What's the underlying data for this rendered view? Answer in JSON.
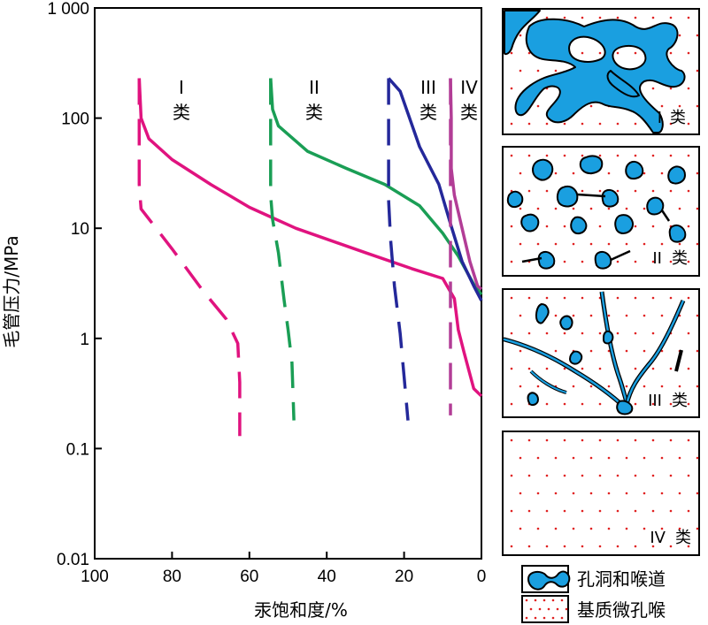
{
  "chart_data": {
    "type": "line",
    "xlabel": "汞饱和度/%",
    "ylabel": "毛管压力/MPa",
    "x_scale": "linear",
    "x_reversed": true,
    "xlim": [
      100,
      0
    ],
    "y_scale": "log",
    "ylim": [
      0.01,
      1000
    ],
    "x_ticks": [
      "100",
      "80",
      "60",
      "40",
      "20",
      "0"
    ],
    "y_ticks": [
      "1 000",
      "100",
      "10",
      "1",
      "0.1",
      "0.01"
    ],
    "series": [
      {
        "name": "I 类",
        "class_numeral": "I",
        "class_word": "类",
        "color": "#e0137f",
        "injection": [
          [
            88.5,
            230
          ],
          [
            88,
            100
          ],
          [
            86,
            65
          ],
          [
            80,
            42
          ],
          [
            70,
            25
          ],
          [
            60,
            15.5
          ],
          [
            48,
            10
          ],
          [
            30,
            6
          ],
          [
            18,
            4.3
          ],
          [
            10,
            3.5
          ],
          [
            7,
            2.3
          ],
          [
            6,
            1.2
          ],
          [
            4.5,
            0.75
          ],
          [
            2,
            0.35
          ],
          [
            0,
            0.3
          ]
        ],
        "withdrawal": [
          [
            88.5,
            230
          ],
          [
            88.5,
            90
          ],
          [
            88.5,
            25
          ],
          [
            88,
            15
          ],
          [
            80,
            6.5
          ],
          [
            72,
            2.7
          ],
          [
            66,
            1.5
          ],
          [
            63,
            0.9
          ],
          [
            62.5,
            0.4
          ],
          [
            62.5,
            0.13
          ]
        ]
      },
      {
        "name": "II 类",
        "class_numeral": "II",
        "class_word": "类",
        "color": "#1a9e55",
        "injection": [
          [
            54.5,
            230
          ],
          [
            54,
            120
          ],
          [
            52.5,
            85
          ],
          [
            45,
            50
          ],
          [
            35,
            35
          ],
          [
            25,
            25
          ],
          [
            16,
            16
          ],
          [
            10,
            9
          ],
          [
            6,
            5.6
          ],
          [
            2,
            3.1
          ],
          [
            0,
            2.5
          ]
        ],
        "withdrawal": [
          [
            54.5,
            230
          ],
          [
            54.5,
            100
          ],
          [
            54.5,
            20
          ],
          [
            54,
            12
          ],
          [
            52.5,
            6
          ],
          [
            51,
            2.2
          ],
          [
            50,
            1.2
          ],
          [
            49,
            0.6
          ],
          [
            48.5,
            0.18
          ]
        ]
      },
      {
        "name": "III 类",
        "class_numeral": "III",
        "class_word": "类",
        "color": "#24289a",
        "injection": [
          [
            24,
            230
          ],
          [
            23,
            210
          ],
          [
            21,
            175
          ],
          [
            19,
            110
          ],
          [
            16,
            55
          ],
          [
            11,
            25
          ],
          [
            8,
            11
          ],
          [
            5,
            5
          ],
          [
            2,
            3
          ],
          [
            0,
            2.2
          ]
        ],
        "withdrawal": [
          [
            24,
            230
          ],
          [
            24,
            100
          ],
          [
            24,
            30
          ],
          [
            24,
            18
          ],
          [
            23.5,
            8
          ],
          [
            22.5,
            3
          ],
          [
            21,
            1.1
          ],
          [
            20,
            0.45
          ],
          [
            19,
            0.18
          ]
        ]
      },
      {
        "name": "IV 类",
        "class_numeral": "IV",
        "class_word": "类",
        "color": "#b23d96",
        "injection": [
          [
            8,
            230
          ],
          [
            7.8,
            100
          ],
          [
            7.8,
            35
          ],
          [
            7,
            20
          ],
          [
            5,
            10
          ],
          [
            3,
            5
          ],
          [
            1,
            3
          ],
          [
            0,
            2.8
          ]
        ],
        "withdrawal": [
          [
            8,
            230
          ],
          [
            8,
            100
          ],
          [
            8,
            40
          ],
          [
            8,
            15
          ],
          [
            8,
            5
          ],
          [
            8,
            1.5
          ],
          [
            8,
            0.5
          ],
          [
            8,
            0.2
          ]
        ]
      }
    ]
  },
  "panels": [
    {
      "numeral": "I",
      "word": "类"
    },
    {
      "numeral": "II",
      "word": "类"
    },
    {
      "numeral": "III",
      "word": "类"
    },
    {
      "numeral": "IV",
      "word": "类"
    }
  ],
  "legend": {
    "pore_throat": "孔洞和喉道",
    "matrix_micropore": "基质微孔喉"
  },
  "colors": {
    "pore_fill": "#1a9fe0",
    "dot": "#e02020"
  }
}
